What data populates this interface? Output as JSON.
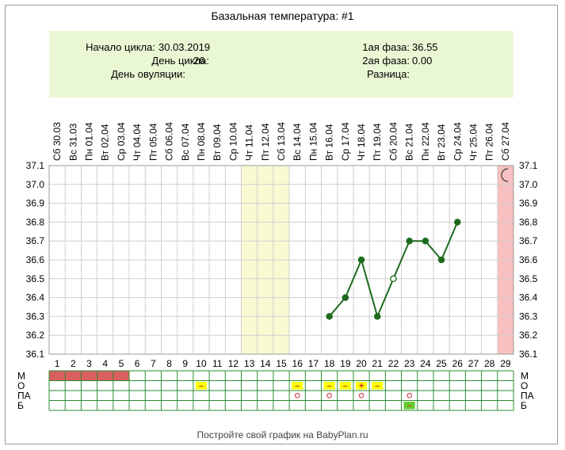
{
  "title": "Базальная температура: #1",
  "info": {
    "cycle_start": {
      "label": "Начало цикла:",
      "value": "30.03.2019"
    },
    "cycle_day": {
      "label": "День цикла:",
      "value": "26"
    },
    "ovulation_day": {
      "label": "День овуляции:",
      "value": ""
    },
    "phase1": {
      "label": "1ая фаза:",
      "value": "36.55"
    },
    "phase2": {
      "label": "2ая фаза:",
      "value": "0.00"
    },
    "difference": {
      "label": "Разница:",
      "value": ""
    }
  },
  "footer": "Постройте свой график на BabyPlan.ru",
  "colors": {
    "line": "#1e6b1e",
    "grid": "#2e8b2e",
    "highlight_yellow": "#fafad2",
    "highlight_pink": "#f8c0c0",
    "menstruation": "#d96060",
    "mark_yellow": "#ffff00",
    "mark_green": "#66cc33",
    "info_bg": "#eaf7d4"
  },
  "icons": {
    "moon": "moon-icon"
  },
  "chart_data": {
    "type": "line",
    "dates": [
      "Сб 30.03",
      "Вс 31.03",
      "Пн 01.04",
      "Вт 02.04",
      "Ср 03.04",
      "Чт 04.04",
      "Пт 05.04",
      "Сб 06.04",
      "Вс 07.04",
      "Пн 08.04",
      "Вт 09.04",
      "Ср 10.04",
      "Чт 11.04",
      "Пт 12.04",
      "Сб 13.04",
      "Вс 14.04",
      "Пн 15.04",
      "Вт 16.04",
      "Ср 17.04",
      "Чт 18.04",
      "Пт 19.04",
      "Сб 20.04",
      "Вс 21.04",
      "Пн 22.04",
      "Вт 23.04",
      "Ср 24.04",
      "Чт 25.04",
      "Пт 26.04",
      "Сб 27.04"
    ],
    "days": [
      1,
      2,
      3,
      4,
      5,
      6,
      7,
      8,
      9,
      10,
      11,
      12,
      13,
      14,
      15,
      16,
      17,
      18,
      19,
      20,
      21,
      22,
      23,
      24,
      25,
      26,
      27,
      28,
      29
    ],
    "ylim": [
      36.1,
      37.1
    ],
    "yticks": [
      "37.1",
      "37.0",
      "36.9",
      "36.8",
      "36.7",
      "36.6",
      "36.5",
      "36.4",
      "36.3",
      "36.2",
      "36.1"
    ],
    "series": [
      {
        "points": [
          {
            "day": 18,
            "value": 36.3,
            "filled": true
          },
          {
            "day": 19,
            "value": 36.4,
            "filled": true
          },
          {
            "day": 20,
            "value": 36.6,
            "filled": true
          },
          {
            "day": 21,
            "value": 36.3,
            "filled": true
          },
          {
            "day": 22,
            "value": 36.5,
            "filled": false
          },
          {
            "day": 23,
            "value": 36.7,
            "filled": true
          },
          {
            "day": 24,
            "value": 36.7,
            "filled": true
          },
          {
            "day": 25,
            "value": 36.6,
            "filled": true
          },
          {
            "day": 26,
            "value": 36.8,
            "filled": true
          }
        ]
      }
    ],
    "highlight_days": [
      13,
      14,
      15
    ],
    "current_day": 29,
    "rows": [
      {
        "label": "М",
        "marks": [
          {
            "day": 1,
            "type": "red"
          },
          {
            "day": 2,
            "type": "red"
          },
          {
            "day": 3,
            "type": "red"
          },
          {
            "day": 4,
            "type": "red"
          },
          {
            "day": 5,
            "type": "red"
          }
        ]
      },
      {
        "label": "О",
        "marks": [
          {
            "day": 10,
            "type": "yellow",
            "text": "–"
          },
          {
            "day": 16,
            "type": "yellow",
            "text": "–"
          },
          {
            "day": 18,
            "type": "yellow",
            "text": "–"
          },
          {
            "day": 19,
            "type": "yellow",
            "text": "–"
          },
          {
            "day": 20,
            "type": "yellow",
            "text": "+"
          },
          {
            "day": 21,
            "type": "yellow",
            "text": "–"
          }
        ]
      },
      {
        "label": "ПА",
        "marks": [
          {
            "day": 16,
            "type": "circle"
          },
          {
            "day": 18,
            "type": "circle"
          },
          {
            "day": 20,
            "type": "circle"
          },
          {
            "day": 23,
            "type": "circle"
          }
        ]
      },
      {
        "label": "Б",
        "marks": [
          {
            "day": 23,
            "type": "green",
            "text": "–"
          }
        ]
      }
    ]
  }
}
